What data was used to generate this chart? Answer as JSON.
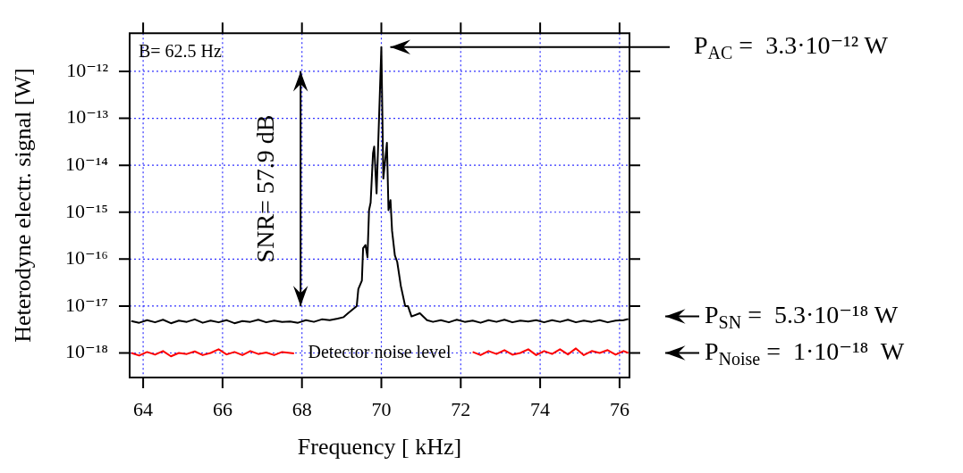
{
  "chart_data": {
    "type": "line",
    "xlabel": "Frequency [ kHz]",
    "ylabel": "Heterodyne electr. signal [W]",
    "log": "y",
    "grid": true,
    "legend": false,
    "marker": "none",
    "line_style": "solid",
    "xlim": [
      63.66,
      76.25
    ],
    "xticks": [
      64,
      66,
      68,
      70,
      72,
      74,
      76
    ],
    "ylim": [
      3e-19,
      6.5e-12
    ],
    "yticks": [
      {
        "value": 1e-18,
        "label": "10⁻¹⁸"
      },
      {
        "value": 1e-17,
        "label": "10⁻¹⁷"
      },
      {
        "value": 1e-16,
        "label": "10⁻¹⁶"
      },
      {
        "value": 1e-15,
        "label": "10⁻¹⁵"
      },
      {
        "value": 1e-14,
        "label": "10⁻¹⁴"
      },
      {
        "value": 1e-13,
        "label": "10⁻¹³"
      },
      {
        "value": 1e-12,
        "label": "10⁻¹²"
      }
    ],
    "series": [
      {
        "color": "#000000",
        "x": [
          63.7,
          63.9,
          64.1,
          64.3,
          64.5,
          64.7,
          64.9,
          65.1,
          65.3,
          65.5,
          65.7,
          65.9,
          66.1,
          66.3,
          66.5,
          66.7,
          66.9,
          67.1,
          67.3,
          67.5,
          67.7,
          67.9,
          68.1,
          68.3,
          68.5,
          68.7,
          68.9,
          69.05,
          69.16,
          69.38,
          69.42,
          69.51,
          69.54,
          69.6,
          69.65,
          69.69,
          69.73,
          69.79,
          69.82,
          69.88,
          70.0,
          70.05,
          70.14,
          70.18,
          70.23,
          70.27,
          70.34,
          70.4,
          70.49,
          70.6,
          70.67,
          70.76,
          70.97,
          71.15,
          71.3,
          71.5,
          71.7,
          71.9,
          72.1,
          72.3,
          72.5,
          72.7,
          72.9,
          73.1,
          73.3,
          73.5,
          73.7,
          73.9,
          74.1,
          74.3,
          74.5,
          74.7,
          74.9,
          75.1,
          75.3,
          75.5,
          75.7,
          75.9,
          76.1,
          76.22
        ],
        "values": [
          4.8e-18,
          4.4e-18,
          5e-18,
          4.5e-18,
          5.1e-18,
          4.3e-18,
          4.9e-18,
          4.6e-18,
          5.2e-18,
          4.4e-18,
          4.9e-18,
          4.5e-18,
          5e-18,
          4.3e-18,
          4.8e-18,
          4.6e-18,
          5.1e-18,
          4.5e-18,
          4.9e-18,
          4.6e-18,
          4.7e-18,
          4.4e-18,
          5e-18,
          4.6e-18,
          5.2e-18,
          5e-18,
          5.4e-18,
          5.8e-18,
          7e-18,
          1e-17,
          2.3e-17,
          3.5e-17,
          1.7e-16,
          2e-16,
          1.1e-16,
          1.1e-15,
          1.6e-15,
          1.8e-14,
          2.5e-14,
          2.5e-15,
          3.3e-12,
          5.2e-15,
          3e-14,
          1.1e-15,
          1.8e-15,
          4e-16,
          1.2e-16,
          8.7e-17,
          2.7e-17,
          1e-17,
          1e-17,
          6e-18,
          7e-18,
          5e-18,
          4.6e-18,
          5e-18,
          4.5e-18,
          5.1e-18,
          4.6e-18,
          4.9e-18,
          4.4e-18,
          5e-18,
          4.6e-18,
          5.1e-18,
          4.5e-18,
          4.9e-18,
          4.7e-18,
          5e-18,
          4.5e-18,
          5e-18,
          4.6e-18,
          5.1e-18,
          4.5e-18,
          4.9e-18,
          4.6e-18,
          5e-18,
          4.5e-18,
          4.9e-18,
          5e-18,
          5.3e-18
        ]
      },
      {
        "color": "#ff0000",
        "x": [
          63.7,
          63.9,
          64.1,
          64.3,
          64.5,
          64.7,
          64.9,
          65.1,
          65.3,
          65.5,
          65.7,
          65.9,
          66.1,
          66.3,
          66.5,
          66.7,
          66.9,
          67.1,
          67.3,
          67.5,
          67.8,
          70.0,
          72.3,
          72.5,
          72.7,
          72.9,
          73.1,
          73.3,
          73.5,
          73.7,
          73.9,
          74.1,
          74.3,
          74.5,
          74.7,
          74.9,
          75.1,
          75.3,
          75.5,
          75.7,
          75.9,
          76.1,
          76.22
        ],
        "values": [
          1e-18,
          8.8e-19,
          1.05e-18,
          9.2e-19,
          1.1e-18,
          8.5e-19,
          1e-18,
          9.5e-19,
          1.08e-18,
          9e-19,
          1e-18,
          1.2e-18,
          9.3e-19,
          1.05e-18,
          9e-19,
          1.1e-18,
          9.5e-19,
          1.02e-18,
          9e-19,
          1.05e-18,
          9.8e-19,
          null,
          1.05e-18,
          9e-19,
          1.1e-18,
          9.5e-19,
          1.15e-18,
          9.2e-19,
          1e-18,
          1.2e-18,
          9e-19,
          1.1e-18,
          9.5e-19,
          1.2e-18,
          9.3e-19,
          1.25e-18,
          9e-19,
          1.1e-18,
          1e-18,
          1.15e-18,
          9.2e-19,
          1.1e-18,
          1e-18
        ]
      }
    ],
    "annotations": [
      "B= 62.5 Hz",
      "SNR= 57.9 dB",
      "P$_{AC}$ =  3.3·10⁻¹² W",
      "P$_{SN}$ =  5.3·10⁻¹⁸ W",
      "P$_{Noise}$ =  1·10⁻¹⁸  W",
      "Detector noise level"
    ]
  }
}
